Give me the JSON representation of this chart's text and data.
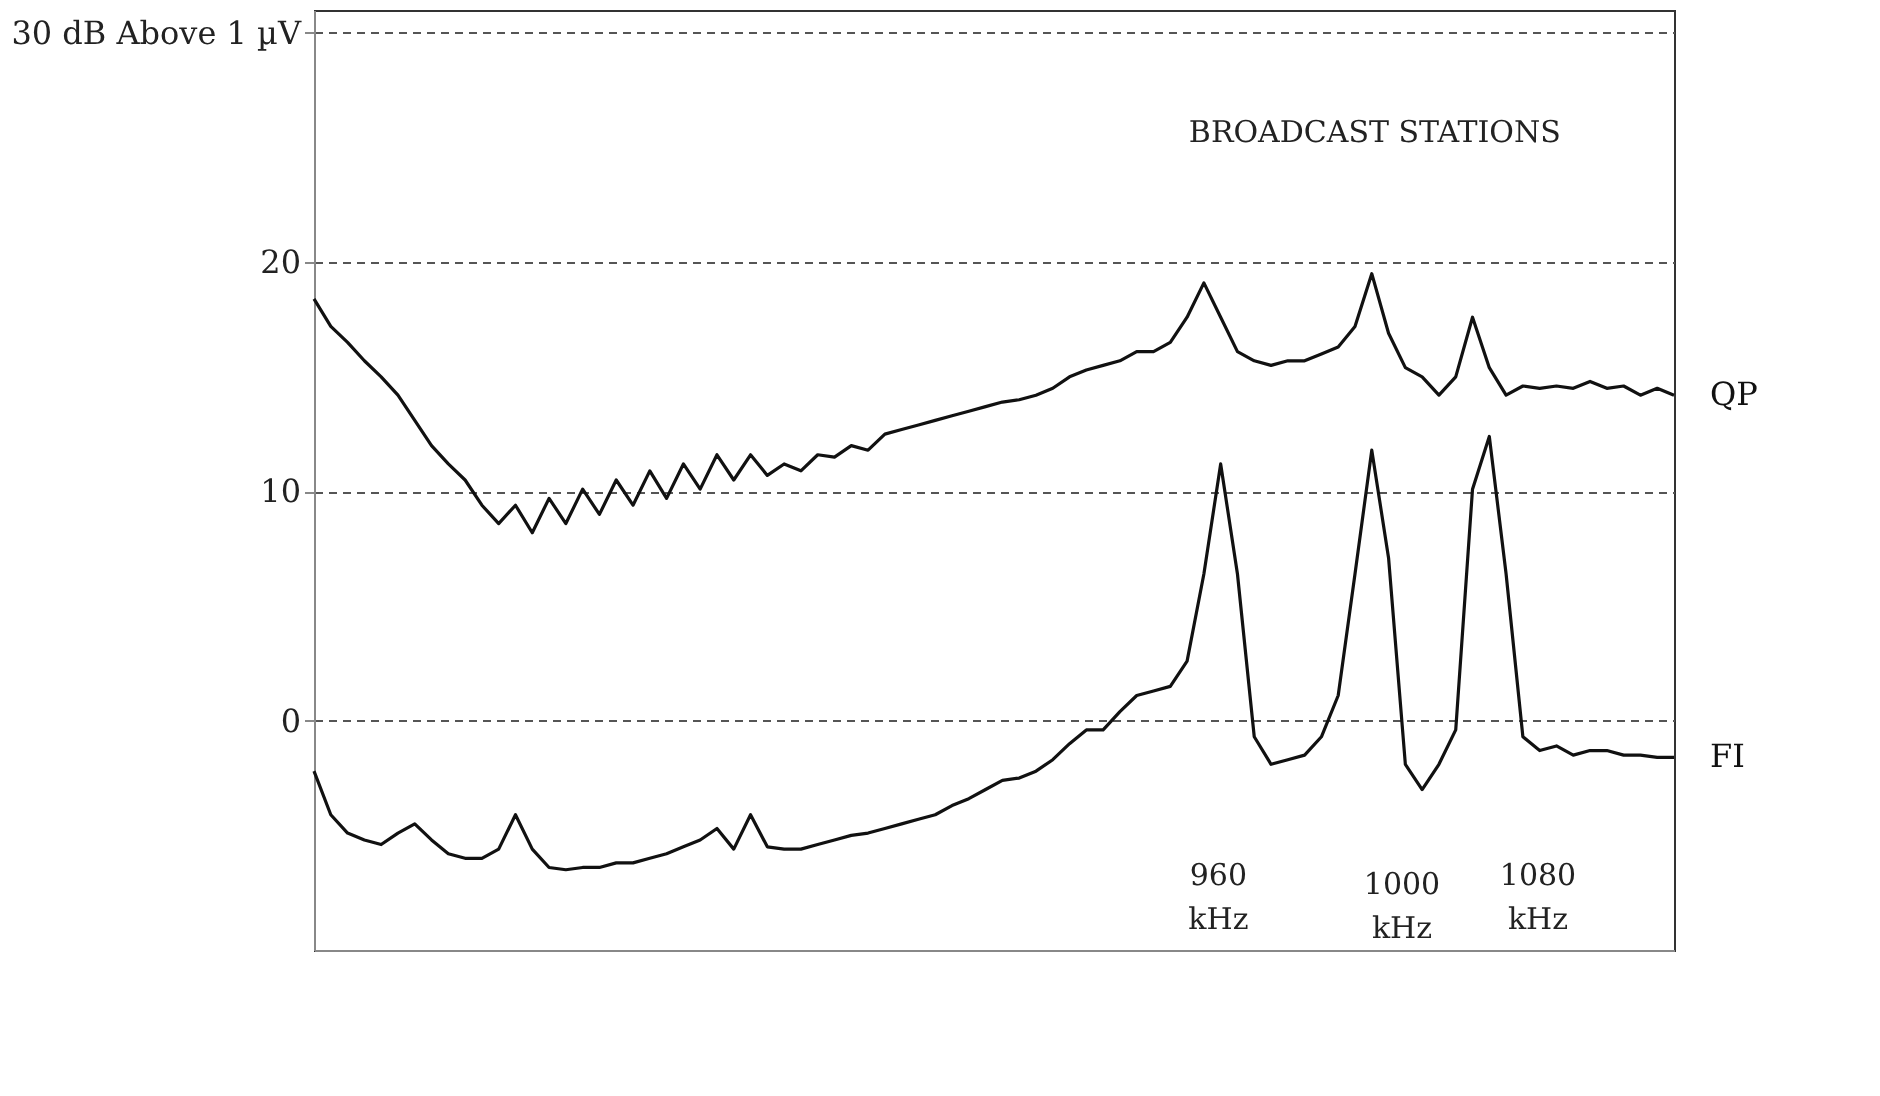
{
  "chart_data": {
    "type": "line",
    "categories": [
      null,
      null,
      null,
      null,
      null,
      null,
      null,
      null,
      null,
      null,
      null,
      null,
      null,
      null,
      null,
      null,
      null,
      null,
      null,
      null,
      null,
      null,
      null,
      null,
      null,
      null,
      null,
      null,
      null,
      null,
      null,
      null,
      null,
      null,
      null,
      null,
      null,
      null,
      null,
      null,
      null,
      null,
      null,
      null,
      null,
      null,
      null,
      null,
      null,
      null,
      null,
      null,
      null,
      null,
      null,
      null,
      null,
      null,
      null,
      null,
      null,
      null,
      null,
      null,
      null,
      null,
      null,
      null,
      null,
      null,
      null,
      null,
      null,
      null,
      null,
      null,
      null,
      null,
      null,
      null,
      null,
      null
    ],
    "series": [
      {
        "name": "QP",
        "color": "#111111",
        "values": [
          18.4,
          17.2,
          16.5,
          15.7,
          15.0,
          14.2,
          13.1,
          12.0,
          11.2,
          10.5,
          9.4,
          8.6,
          9.4,
          8.2,
          9.7,
          8.6,
          10.1,
          9.0,
          10.5,
          9.4,
          10.9,
          9.7,
          11.2,
          10.1,
          11.6,
          10.5,
          11.6,
          10.7,
          11.2,
          10.9,
          11.6,
          11.5,
          12.0,
          11.8,
          12.5,
          12.7,
          12.9,
          13.1,
          13.3,
          13.5,
          13.7,
          13.9,
          14.0,
          14.2,
          14.5,
          15.0,
          15.3,
          15.5,
          15.7,
          16.1,
          16.1,
          16.5,
          17.6,
          19.1,
          17.6,
          16.1,
          15.7,
          15.5,
          15.7,
          15.7,
          16.0,
          16.3,
          17.2,
          19.5,
          16.9,
          15.4,
          15.0,
          14.2,
          15.0,
          17.6,
          15.4,
          14.2,
          14.6,
          14.5,
          14.6,
          14.5,
          14.8,
          14.5,
          14.6,
          14.2,
          14.5,
          14.2
        ]
      },
      {
        "name": "FI",
        "color": "#111111",
        "values": [
          -2.2,
          -4.1,
          -4.9,
          -5.2,
          -5.4,
          -4.9,
          -4.5,
          -5.2,
          -5.8,
          -6.0,
          -6.0,
          -5.6,
          -4.1,
          -5.6,
          -6.4,
          -6.5,
          -6.4,
          -6.4,
          -6.2,
          -6.2,
          -6.0,
          -5.8,
          -5.5,
          -5.2,
          -4.7,
          -5.6,
          -4.1,
          -5.5,
          -5.6,
          -5.6,
          -5.4,
          -5.2,
          -5.0,
          -4.9,
          -4.7,
          -4.5,
          -4.3,
          -4.1,
          -3.7,
          -3.4,
          -3.0,
          -2.6,
          -2.5,
          -2.2,
          -1.7,
          -1.0,
          -0.4,
          -0.4,
          0.4,
          1.1,
          1.3,
          1.5,
          2.6,
          6.4,
          11.2,
          6.4,
          -0.7,
          -1.9,
          -1.7,
          -1.5,
          -0.7,
          1.1,
          6.4,
          11.8,
          7.1,
          -1.9,
          -3.0,
          -1.9,
          -0.4,
          10.1,
          12.4,
          6.4,
          -0.7,
          -1.3,
          -1.1,
          -1.5,
          -1.3,
          -1.3,
          -1.5,
          -1.5,
          -1.6,
          -1.6
        ]
      }
    ],
    "ylim": [
      -10,
      31
    ],
    "yticks": [
      0,
      10,
      20,
      {
        "value": 30,
        "label": "30 dB Above 1 µV"
      }
    ],
    "grid": "y",
    "annotations": [
      "BROADCAST STATIONS",
      "960 kHz",
      "1000 kHz",
      "1080 kHz"
    ]
  }
}
